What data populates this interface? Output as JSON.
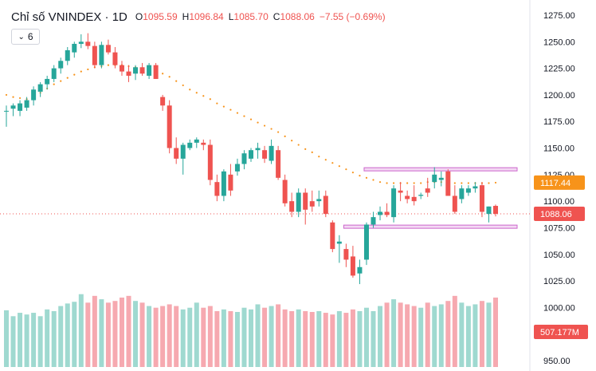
{
  "header": {
    "symbol": "Chỉ số VNINDEX",
    "separator": "·",
    "interval": "1D",
    "o_label": "O",
    "o_value": "1095.59",
    "h_label": "H",
    "h_value": "1096.84",
    "l_label": "L",
    "l_value": "1085.70",
    "c_label": "C",
    "c_value": "1088.06",
    "change": "−7.55 (−0.69%)"
  },
  "indicator_toggle": {
    "count": "6",
    "icon": "chevron-down-icon"
  },
  "colors": {
    "up": "#26a69a",
    "down": "#ef5350",
    "vol_up": "#9fd9d0",
    "vol_down": "#f6a9b0",
    "ma": "#f7931a",
    "box": "#cc66cc",
    "box_fill": "#f3d9f3",
    "ma_label_bg": "#f7931a",
    "price_label_bg": "#ef5350"
  },
  "chart_data": {
    "type": "candlestick",
    "y_ticks": [
      "1275.00",
      "1250.00",
      "1225.00",
      "1200.00",
      "1175.00",
      "1150.00",
      "1125.00",
      "1100.00",
      "1075.00",
      "1050.00",
      "1025.00",
      "1000.00",
      "975.00",
      "950.00"
    ],
    "ylim": [
      950,
      1275
    ],
    "ohlc": [
      [
        1185,
        1190,
        1170,
        1185
      ],
      [
        1187,
        1192,
        1180,
        1190
      ],
      [
        1185,
        1195,
        1180,
        1192
      ],
      [
        1188,
        1198,
        1185,
        1195
      ],
      [
        1195,
        1208,
        1190,
        1205
      ],
      [
        1203,
        1212,
        1198,
        1210
      ],
      [
        1210,
        1218,
        1205,
        1215
      ],
      [
        1215,
        1228,
        1212,
        1225
      ],
      [
        1225,
        1235,
        1220,
        1232
      ],
      [
        1232,
        1245,
        1228,
        1242
      ],
      [
        1240,
        1250,
        1235,
        1248
      ],
      [
        1248,
        1257,
        1244,
        1250
      ],
      [
        1250,
        1258,
        1243,
        1246
      ],
      [
        1246,
        1250,
        1225,
        1228
      ],
      [
        1228,
        1250,
        1225,
        1247
      ],
      [
        1247,
        1252,
        1238,
        1240
      ],
      [
        1240,
        1245,
        1225,
        1228
      ],
      [
        1228,
        1232,
        1218,
        1222
      ],
      [
        1222,
        1228,
        1212,
        1218
      ],
      [
        1220,
        1228,
        1214,
        1226
      ],
      [
        1226,
        1230,
        1218,
        1220
      ],
      [
        1218,
        1230,
        1215,
        1228
      ],
      [
        1228,
        1230,
        1215,
        1215
      ],
      [
        1198,
        1200,
        1185,
        1190
      ],
      [
        1190,
        1195,
        1145,
        1150
      ],
      [
        1150,
        1160,
        1135,
        1140
      ],
      [
        1140,
        1155,
        1125,
        1153
      ],
      [
        1150,
        1158,
        1148,
        1155
      ],
      [
        1155,
        1160,
        1150,
        1158
      ],
      [
        1155,
        1158,
        1148,
        1153
      ],
      [
        1153,
        1158,
        1115,
        1120
      ],
      [
        1118,
        1125,
        1100,
        1105
      ],
      [
        1105,
        1130,
        1100,
        1128
      ],
      [
        1125,
        1135,
        1105,
        1110
      ],
      [
        1128,
        1140,
        1124,
        1135
      ],
      [
        1135,
        1148,
        1130,
        1145
      ],
      [
        1140,
        1150,
        1137,
        1148
      ],
      [
        1148,
        1155,
        1140,
        1150
      ],
      [
        1148,
        1152,
        1136,
        1140
      ],
      [
        1138,
        1158,
        1135,
        1152
      ],
      [
        1148,
        1152,
        1120,
        1122
      ],
      [
        1120,
        1125,
        1095,
        1098
      ],
      [
        1100,
        1108,
        1085,
        1090
      ],
      [
        1090,
        1112,
        1085,
        1108
      ],
      [
        1108,
        1112,
        1078,
        1092
      ],
      [
        1100,
        1110,
        1090,
        1095
      ],
      [
        1100,
        1110,
        1095,
        1102
      ],
      [
        1105,
        1110,
        1085,
        1088
      ],
      [
        1080,
        1082,
        1052,
        1055
      ],
      [
        1060,
        1068,
        1042,
        1062
      ],
      [
        1055,
        1060,
        1038,
        1045
      ],
      [
        1048,
        1058,
        1028,
        1030
      ],
      [
        1032,
        1045,
        1022,
        1038
      ],
      [
        1045,
        1080,
        1040,
        1078
      ],
      [
        1078,
        1090,
        1075,
        1085
      ],
      [
        1087,
        1095,
        1082,
        1090
      ],
      [
        1090,
        1098,
        1085,
        1087
      ],
      [
        1085,
        1115,
        1080,
        1112
      ],
      [
        1110,
        1118,
        1100,
        1108
      ],
      [
        1105,
        1110,
        1098,
        1102
      ],
      [
        1104,
        1115,
        1096,
        1100
      ],
      [
        1105,
        1108,
        1102,
        1106
      ],
      [
        1112,
        1122,
        1104,
        1108
      ],
      [
        1118,
        1132,
        1112,
        1125
      ],
      [
        1120,
        1128,
        1114,
        1122
      ],
      [
        1128,
        1130,
        1105,
        1105
      ],
      [
        1105,
        1115,
        1088,
        1090
      ],
      [
        1102,
        1115,
        1098,
        1112
      ],
      [
        1108,
        1115,
        1105,
        1112
      ],
      [
        1112,
        1118,
        1108,
        1114
      ],
      [
        1115,
        1118,
        1085,
        1090
      ],
      [
        1088,
        1095,
        1080,
        1095
      ],
      [
        1095.59,
        1096.84,
        1085.7,
        1088.06
      ]
    ],
    "ma": [
      1200,
      1198,
      1197,
      1196,
      1198,
      1202,
      1206,
      1210,
      1213,
      1216,
      1219,
      1222,
      1224,
      1226,
      1227,
      1228,
      1228,
      1228,
      1227,
      1226,
      1225,
      1224,
      1222,
      1220,
      1217,
      1213,
      1209,
      1205,
      1202,
      1199,
      1196,
      1192,
      1189,
      1186,
      1183,
      1180,
      1177,
      1174,
      1171,
      1168,
      1165,
      1161,
      1157,
      1153,
      1149,
      1146,
      1142,
      1139,
      1136,
      1133,
      1130,
      1127,
      1124,
      1122,
      1120,
      1118,
      1117,
      1117,
      1117,
      1117,
      1117,
      1117,
      1118,
      1118,
      1118,
      1118,
      1117,
      1117,
      1117,
      1117,
      1117,
      1117,
      1117.44
    ],
    "volume": [
      335,
      300,
      320,
      310,
      320,
      300,
      340,
      330,
      360,
      375,
      385,
      430,
      380,
      420,
      400,
      380,
      390,
      410,
      420,
      390,
      380,
      360,
      350,
      360,
      370,
      360,
      340,
      350,
      380,
      350,
      360,
      330,
      340,
      330,
      325,
      350,
      340,
      370,
      350,
      360,
      370,
      340,
      330,
      340,
      330,
      325,
      330,
      320,
      310,
      330,
      320,
      340,
      330,
      350,
      330,
      360,
      380,
      400,
      380,
      370,
      360,
      350,
      380,
      360,
      370,
      390,
      420,
      380,
      360,
      370,
      390,
      380,
      410
    ],
    "volume_max": 650,
    "boxes": [
      {
        "x_from": 53,
        "x_to": 72,
        "y": 1130
      },
      {
        "x_from": 50,
        "x_to": 72,
        "y": 1076
      }
    ],
    "ma_label": "1117.44",
    "price_label": "1088.06",
    "volume_label": "507.177M"
  }
}
